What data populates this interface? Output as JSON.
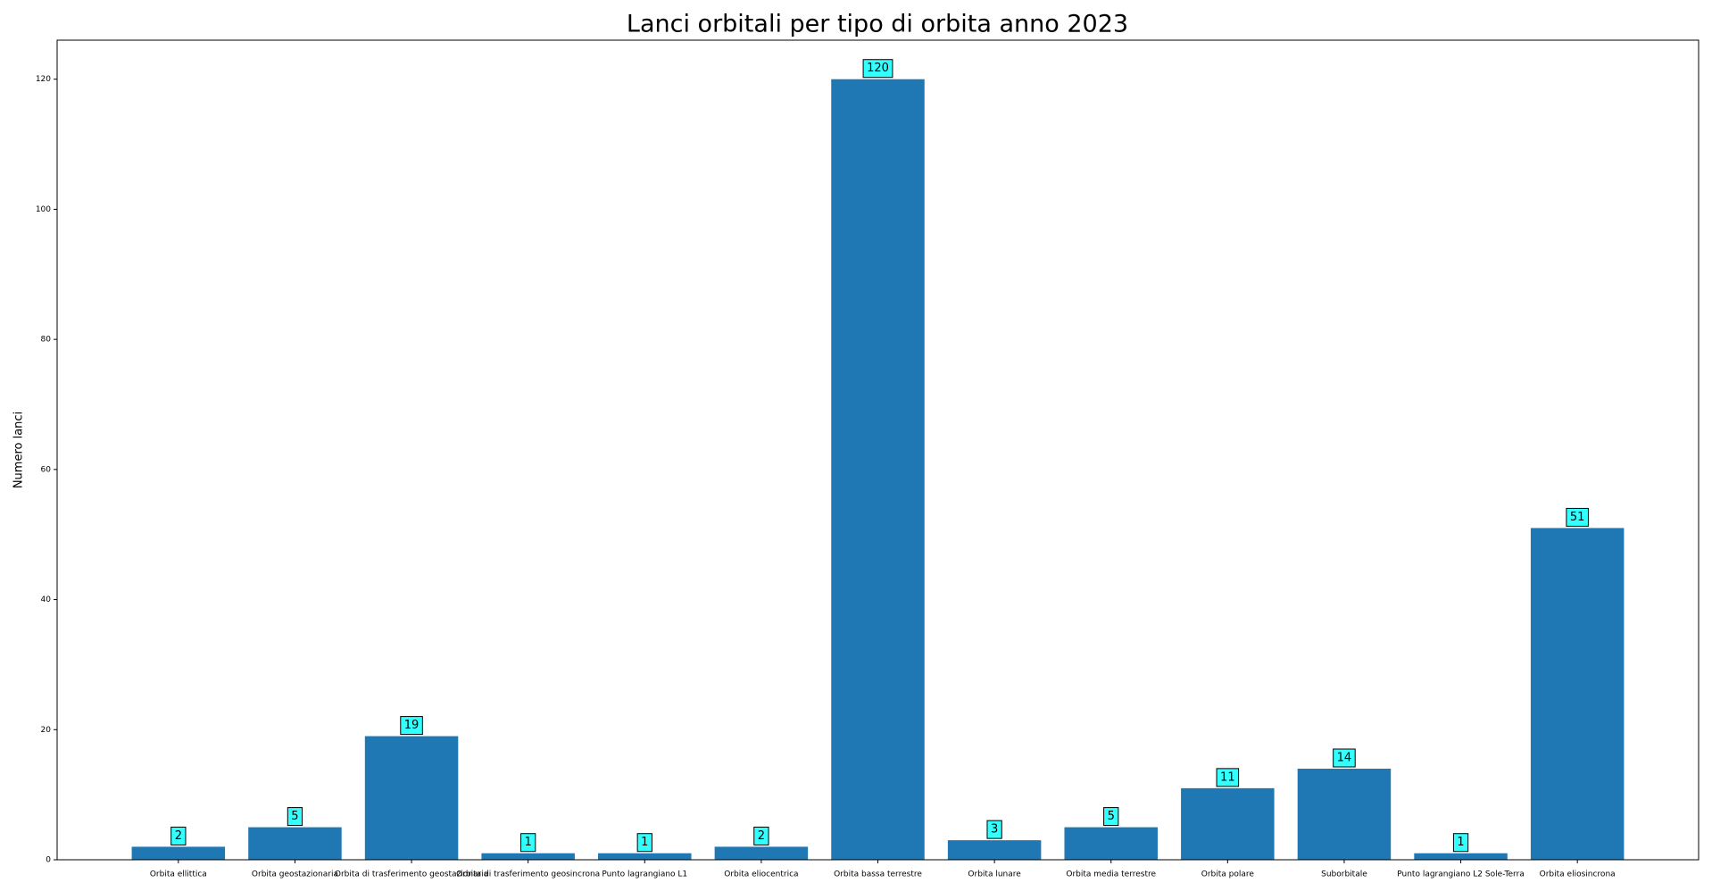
{
  "chart_data": {
    "type": "bar",
    "title": "Lanci orbitali per tipo di orbita anno 2023",
    "y_label": "Numero lanci",
    "categories": [
      "Orbita ellittica",
      "Orbita geostazionaria",
      "Orbita di trasferimento geostazionaria",
      "Orbita di trasferimento geosincrona",
      "Punto lagrangiano L1",
      "Orbita eliocentrica",
      "Orbita bassa terrestre",
      "Orbita lunare",
      "Orbita media terrestre",
      "Orbita polare",
      "Suborbitale",
      "Punto lagrangiano L2 Sole-Terra",
      "Orbita eliosincrona"
    ],
    "values": [
      2,
      5,
      19,
      1,
      1,
      2,
      120,
      3,
      5,
      11,
      14,
      1,
      51
    ],
    "color": "#1f77b4",
    "ylim": [
      0,
      126
    ],
    "yticks": [
      0,
      20,
      40,
      60,
      80,
      100,
      120
    ]
  }
}
